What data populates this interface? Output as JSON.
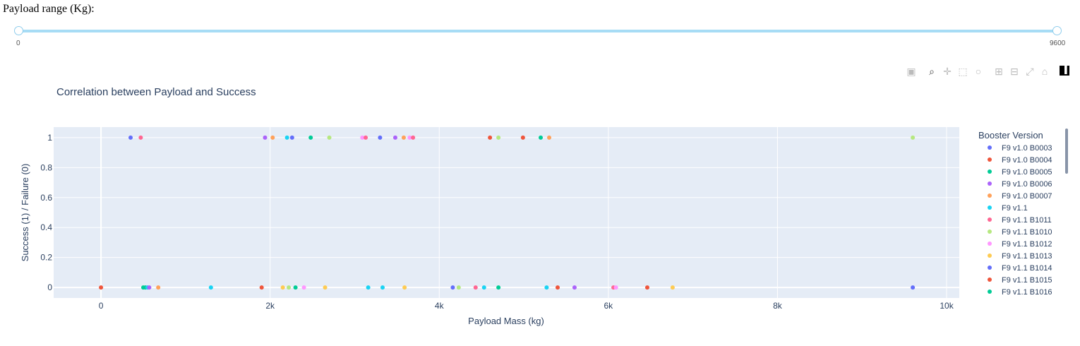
{
  "slider": {
    "label": "Payload range (Kg):",
    "min_label": "0",
    "max_label": "9600",
    "min": 0,
    "max": 9600
  },
  "modebar": {
    "icons": [
      "camera-icon",
      "zoom-icon",
      "pan-icon",
      "box-select-icon",
      "lasso-icon",
      "zoom-in-icon",
      "zoom-out-icon",
      "autoscale-icon",
      "home-icon",
      "plotly-logo-icon"
    ],
    "active_color": "#444444",
    "inactive_color": "#bbbbbb"
  },
  "chart_data": {
    "type": "scatter",
    "title": "Correlation between Payload and Success",
    "xlabel": "Payload Mass (kg)",
    "ylabel": "Success (1) / Failure (0)",
    "xlim": [
      -560,
      10150
    ],
    "ylim": [
      -0.07,
      1.07
    ],
    "x_ticks": [
      0,
      2000,
      4000,
      6000,
      8000,
      10000
    ],
    "x_tick_labels": [
      "0",
      "2k",
      "4k",
      "6k",
      "8k",
      "10k"
    ],
    "y_ticks": [
      0,
      0.2,
      0.4,
      0.6,
      0.8,
      1
    ],
    "y_tick_labels": [
      "0",
      "0.2",
      "0.4",
      "0.6",
      "0.8",
      "1"
    ],
    "grid": true,
    "plot_bg": "#e5ecf6",
    "legend": {
      "title": "Booster Version",
      "placement": "right",
      "entries": [
        {
          "name": "F9 v1.0  B0003",
          "color": "#636efa"
        },
        {
          "name": "F9 v1.0  B0004",
          "color": "#ef553b"
        },
        {
          "name": "F9 v1.0  B0005",
          "color": "#00cc96"
        },
        {
          "name": "F9 v1.0  B0006",
          "color": "#ab63fa"
        },
        {
          "name": "F9 v1.0  B0007",
          "color": "#ffa15a"
        },
        {
          "name": "F9 v1.1",
          "color": "#19d3f3"
        },
        {
          "name": "F9 v1.1 B1011",
          "color": "#ff6692"
        },
        {
          "name": "F9 v1.1 B1010",
          "color": "#b6e880"
        },
        {
          "name": "F9 v1.1 B1012",
          "color": "#ff97ff"
        },
        {
          "name": "F9 v1.1 B1013",
          "color": "#fecb52"
        },
        {
          "name": "F9 v1.1 B1014",
          "color": "#636efa"
        },
        {
          "name": "F9 v1.1 B1015",
          "color": "#ef553b"
        },
        {
          "name": "F9 v1.1 B1016",
          "color": "#00cc96"
        }
      ]
    },
    "points": [
      {
        "x": 350,
        "y": 1,
        "color": "#636efa"
      },
      {
        "x": 470,
        "y": 1,
        "color": "#ff6692"
      },
      {
        "x": 1940,
        "y": 1,
        "color": "#ab63fa"
      },
      {
        "x": 2030,
        "y": 1,
        "color": "#ffa15a"
      },
      {
        "x": 2200,
        "y": 1,
        "color": "#19d3f3"
      },
      {
        "x": 2260,
        "y": 1,
        "color": "#636efa"
      },
      {
        "x": 2480,
        "y": 1,
        "color": "#00cc96"
      },
      {
        "x": 2700,
        "y": 1,
        "color": "#b6e880"
      },
      {
        "x": 3090,
        "y": 1,
        "color": "#ff97ff"
      },
      {
        "x": 3130,
        "y": 1,
        "color": "#ff6692"
      },
      {
        "x": 3300,
        "y": 1,
        "color": "#636efa"
      },
      {
        "x": 3480,
        "y": 1,
        "color": "#ab63fa"
      },
      {
        "x": 3580,
        "y": 1,
        "color": "#ffa15a"
      },
      {
        "x": 3650,
        "y": 1,
        "color": "#ff97ff"
      },
      {
        "x": 3690,
        "y": 1,
        "color": "#ff6692"
      },
      {
        "x": 4600,
        "y": 1,
        "color": "#ef553b"
      },
      {
        "x": 4700,
        "y": 1,
        "color": "#b6e880"
      },
      {
        "x": 4990,
        "y": 1,
        "color": "#ef553b"
      },
      {
        "x": 5200,
        "y": 1,
        "color": "#00cc96"
      },
      {
        "x": 5300,
        "y": 1,
        "color": "#ffa15a"
      },
      {
        "x": 9600,
        "y": 1,
        "color": "#b6e880"
      },
      {
        "x": 0,
        "y": 0,
        "color": "#ef553b"
      },
      {
        "x": 500,
        "y": 0,
        "color": "#00cc96"
      },
      {
        "x": 525,
        "y": 0,
        "color": "#00cc96"
      },
      {
        "x": 550,
        "y": 0,
        "color": "#19d3f3"
      },
      {
        "x": 570,
        "y": 0,
        "color": "#ab63fa"
      },
      {
        "x": 677,
        "y": 0,
        "color": "#ffa15a"
      },
      {
        "x": 1300,
        "y": 0,
        "color": "#19d3f3"
      },
      {
        "x": 1900,
        "y": 0,
        "color": "#ef553b"
      },
      {
        "x": 2150,
        "y": 0,
        "color": "#fecb52"
      },
      {
        "x": 2220,
        "y": 0,
        "color": "#b6e880"
      },
      {
        "x": 2300,
        "y": 0,
        "color": "#00cc96"
      },
      {
        "x": 2400,
        "y": 0,
        "color": "#ff97ff"
      },
      {
        "x": 2650,
        "y": 0,
        "color": "#fecb52"
      },
      {
        "x": 3160,
        "y": 0,
        "color": "#19d3f3"
      },
      {
        "x": 3330,
        "y": 0,
        "color": "#19d3f3"
      },
      {
        "x": 3590,
        "y": 0,
        "color": "#fecb52"
      },
      {
        "x": 4160,
        "y": 0,
        "color": "#636efa"
      },
      {
        "x": 4230,
        "y": 0,
        "color": "#b6e880"
      },
      {
        "x": 4430,
        "y": 0,
        "color": "#ff6692"
      },
      {
        "x": 4530,
        "y": 0,
        "color": "#19d3f3"
      },
      {
        "x": 4700,
        "y": 0,
        "color": "#00cc96"
      },
      {
        "x": 5270,
        "y": 0,
        "color": "#19d3f3"
      },
      {
        "x": 5400,
        "y": 0,
        "color": "#ef553b"
      },
      {
        "x": 5600,
        "y": 0,
        "color": "#ab63fa"
      },
      {
        "x": 6060,
        "y": 0,
        "color": "#ff6692"
      },
      {
        "x": 6090,
        "y": 0,
        "color": "#ff97ff"
      },
      {
        "x": 6460,
        "y": 0,
        "color": "#ef553b"
      },
      {
        "x": 6760,
        "y": 0,
        "color": "#fecb52"
      },
      {
        "x": 9600,
        "y": 0,
        "color": "#636efa"
      }
    ]
  }
}
